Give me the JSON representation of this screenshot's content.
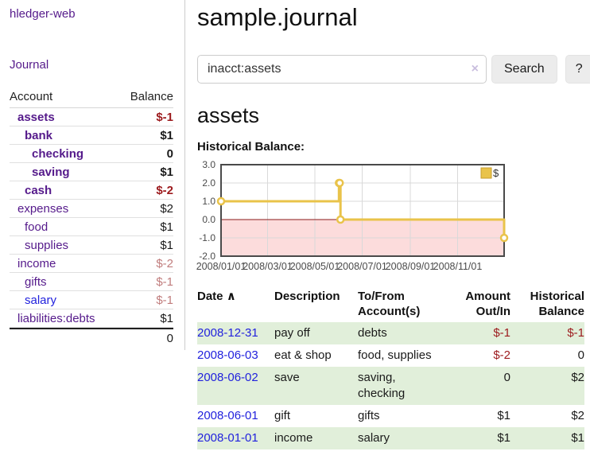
{
  "app": {
    "brand": "hledger-web",
    "nav_journal": "Journal"
  },
  "sidebar": {
    "headers": {
      "account": "Account",
      "balance": "Balance"
    },
    "rows": [
      {
        "account": "assets",
        "balance": "$-1",
        "indent": 0,
        "bold": true,
        "neg": true,
        "link_color": "purple"
      },
      {
        "account": "bank",
        "balance": "$1",
        "indent": 1,
        "bold": true,
        "neg": false,
        "link_color": "purple"
      },
      {
        "account": "checking",
        "balance": "0",
        "indent": 2,
        "bold": true,
        "neg": false,
        "link_color": "purple"
      },
      {
        "account": "saving",
        "balance": "$1",
        "indent": 2,
        "bold": true,
        "neg": false,
        "link_color": "purple"
      },
      {
        "account": "cash",
        "balance": "$-2",
        "indent": 1,
        "bold": true,
        "neg": true,
        "link_color": "purple"
      },
      {
        "account": "expenses",
        "balance": "$2",
        "indent": 0,
        "bold": false,
        "neg": false,
        "link_color": "purple"
      },
      {
        "account": "food",
        "balance": "$1",
        "indent": 1,
        "bold": false,
        "neg": false,
        "link_color": "purple"
      },
      {
        "account": "supplies",
        "balance": "$1",
        "indent": 1,
        "bold": false,
        "neg": false,
        "link_color": "purple"
      },
      {
        "account": "income",
        "balance": "$-2",
        "indent": 0,
        "bold": false,
        "neg": true,
        "link_color": "purple"
      },
      {
        "account": "gifts",
        "balance": "$-1",
        "indent": 1,
        "bold": false,
        "neg": true,
        "link_color": "purple"
      },
      {
        "account": "salary",
        "balance": "$-1",
        "indent": 1,
        "bold": false,
        "neg": true,
        "link_color": "blue"
      },
      {
        "account": "liabilities:debts",
        "balance": "$1",
        "indent": 0,
        "bold": false,
        "neg": false,
        "link_color": "purple"
      }
    ],
    "total": "0"
  },
  "main": {
    "title": "sample.journal",
    "search": {
      "value": "inacct:assets",
      "clear_icon": "×",
      "search_button": "Search",
      "help_button": "?"
    },
    "account_heading": "assets",
    "section_heading": "Historical Balance:"
  },
  "chart_data": {
    "type": "line",
    "step": true,
    "title": "Historical Balance",
    "series": [
      {
        "name": "$",
        "color": "#e9c34a",
        "points": [
          [
            "2008-01-01",
            1
          ],
          [
            "2008-06-01",
            2
          ],
          [
            "2008-06-02",
            2
          ],
          [
            "2008-06-03",
            0
          ],
          [
            "2008-12-31",
            -1
          ]
        ]
      }
    ],
    "x_range": [
      "2008-01-01",
      "2008-12-31"
    ],
    "ylim": [
      -2,
      3
    ],
    "yticks": [
      3,
      2,
      1,
      0,
      -1,
      -2
    ],
    "xticks": [
      "2008/01/01",
      "2008/03/01",
      "2008/05/01",
      "2008/07/01",
      "2008/09/01",
      "2008/11/01"
    ],
    "legend_position": "top-right",
    "grid": true,
    "negative_fill": "#fcdcdc",
    "zero_line_color": "#8b1a1a"
  },
  "register": {
    "headers": {
      "date": "Date",
      "sort_icon": "∧",
      "description": "Description",
      "account": "To/From Account(s)",
      "amount": "Amount Out/In",
      "balance": "Historical Balance"
    },
    "rows": [
      {
        "date": "2008-12-31",
        "description": "pay off",
        "accounts": "debts",
        "amount": "$-1",
        "amount_neg": true,
        "balance": "$-1",
        "balance_neg": true
      },
      {
        "date": "2008-06-03",
        "description": "eat & shop",
        "accounts": "food, supplies",
        "amount": "$-2",
        "amount_neg": true,
        "balance": "0",
        "balance_neg": false
      },
      {
        "date": "2008-06-02",
        "description": "save",
        "accounts": "saving, checking",
        "amount": "0",
        "amount_neg": false,
        "balance": "$2",
        "balance_neg": false
      },
      {
        "date": "2008-06-01",
        "description": "gift",
        "accounts": "gifts",
        "amount": "$1",
        "amount_neg": false,
        "balance": "$2",
        "balance_neg": false
      },
      {
        "date": "2008-01-01",
        "description": "income",
        "accounts": "salary",
        "amount": "$1",
        "amount_neg": false,
        "balance": "$1",
        "balance_neg": false
      }
    ]
  },
  "colors": {
    "link_purple": "#551a8b",
    "link_blue": "#2222dd",
    "negative_strong": "#9c1a1d",
    "negative_soft": "#c17d7d",
    "row_stripe_green": "#e1efda",
    "chart_gold": "#e9c34a"
  }
}
